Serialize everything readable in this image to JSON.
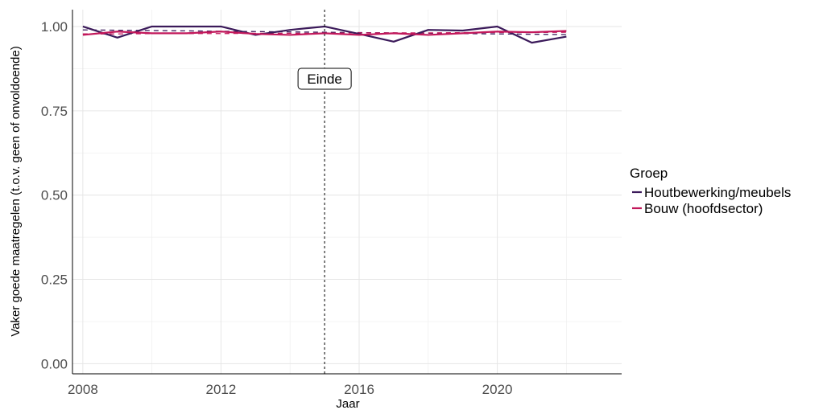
{
  "chart_data": {
    "type": "line",
    "xlabel": "Jaar",
    "ylabel": "Vaker goede maatregelen (t.o.v. geen of onvoldoende)",
    "xlim": [
      2007.7,
      2023.6
    ],
    "ylim": [
      -0.03,
      1.05
    ],
    "x_ticks": [
      2008,
      2012,
      2016,
      2020
    ],
    "y_ticks": [
      0.0,
      0.25,
      0.5,
      0.75,
      1.0
    ],
    "y_tick_labels": [
      "0.00",
      "0.25",
      "0.50",
      "0.75",
      "1.00"
    ],
    "grid": true,
    "legend": {
      "title": "Groep",
      "position": "right"
    },
    "x": [
      2008,
      2009,
      2010,
      2011,
      2012,
      2013,
      2014,
      2015,
      2016,
      2017,
      2018,
      2019,
      2020,
      2021,
      2022
    ],
    "series": [
      {
        "name": "Houtbewerking/meubels",
        "color": "#3b1a5a",
        "values": [
          1.0,
          0.967,
          1.0,
          1.0,
          1.0,
          0.975,
          0.99,
          1.0,
          0.978,
          0.955,
          0.99,
          0.988,
          1.0,
          0.952,
          0.97
        ],
        "trend": [
          0.99,
          0.989,
          0.988,
          0.987,
          0.986,
          0.985,
          0.984,
          0.983,
          0.982,
          0.981,
          0.98,
          0.979,
          0.978,
          0.977,
          0.976
        ]
      },
      {
        "name": "Bouw (hoofdsector)",
        "color": "#c2185b",
        "values": [
          0.975,
          0.985,
          0.98,
          0.98,
          0.985,
          0.978,
          0.975,
          0.98,
          0.975,
          0.98,
          0.975,
          0.98,
          0.985,
          0.983,
          0.987
        ],
        "trend": [
          0.978,
          0.978,
          0.979,
          0.979,
          0.979,
          0.98,
          0.98,
          0.98,
          0.981,
          0.981,
          0.981,
          0.982,
          0.982,
          0.982,
          0.983
        ]
      }
    ],
    "annotations": [
      {
        "type": "vline",
        "x": 2015,
        "label": "Einde",
        "label_y": 0.845
      }
    ]
  }
}
